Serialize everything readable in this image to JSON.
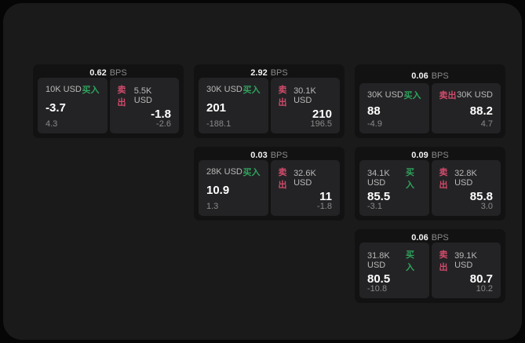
{
  "labels": {
    "bps": "BPS",
    "buy": "买入",
    "sell": "卖出"
  },
  "colors": {
    "background": "#060607",
    "surface": "#1a1a1b",
    "card": "#121213",
    "panel": "#232325",
    "buy": "#2fa35c",
    "sell": "#d14b6b"
  },
  "cards": [
    {
      "bps": "0.62",
      "buy": {
        "amount": "10K USD",
        "value": "-3.7",
        "delta": "4.3"
      },
      "sell": {
        "amount": "5.5K USD",
        "value": "-1.8",
        "delta": "-2.6"
      }
    },
    {
      "bps": "2.92",
      "buy": {
        "amount": "30K USD",
        "value": "201",
        "delta": "-188.1"
      },
      "sell": {
        "amount": "30.1K USD",
        "value": "210",
        "delta": "196.5"
      }
    },
    {
      "bps": "0.06",
      "buy": {
        "amount": "30K USD",
        "value": "88",
        "delta": "-4.9"
      },
      "sell": {
        "amount": "30K USD",
        "value": "88.2",
        "delta": "4.7"
      }
    },
    {
      "bps": "0.03",
      "buy": {
        "amount": "28K USD",
        "value": "10.9",
        "delta": "1.3"
      },
      "sell": {
        "amount": "32.6K USD",
        "value": "11",
        "delta": "-1.8"
      }
    },
    {
      "bps": "0.09",
      "buy": {
        "amount": "34.1K USD",
        "value": "85.5",
        "delta": "-3.1"
      },
      "sell": {
        "amount": "32.8K USD",
        "value": "85.8",
        "delta": "3.0"
      }
    },
    {
      "bps": "0.06",
      "buy": {
        "amount": "31.8K USD",
        "value": "80.5",
        "delta": "-10.8"
      },
      "sell": {
        "amount": "39.1K USD",
        "value": "80.7",
        "delta": "10.2"
      }
    }
  ]
}
